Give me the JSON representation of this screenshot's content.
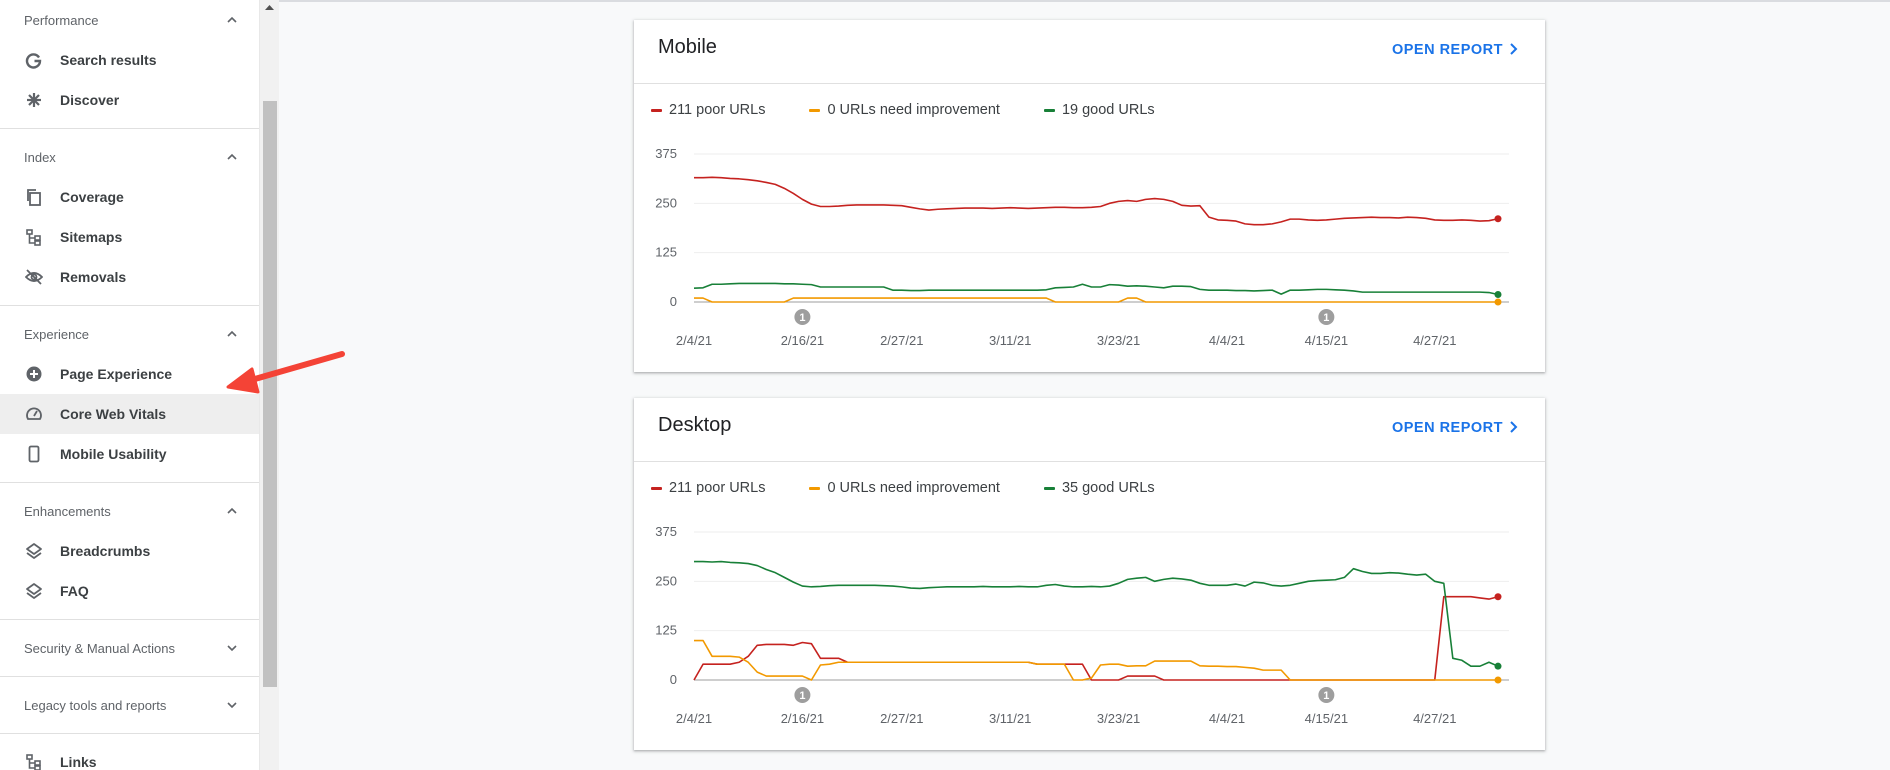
{
  "sidebar": {
    "sections": [
      {
        "title": "Performance",
        "expanded": true,
        "items": [
          {
            "label": "Search results",
            "icon": "g"
          },
          {
            "label": "Discover",
            "icon": "star"
          }
        ]
      },
      {
        "title": "Index",
        "expanded": true,
        "items": [
          {
            "label": "Coverage",
            "icon": "copy"
          },
          {
            "label": "Sitemaps",
            "icon": "tree"
          },
          {
            "label": "Removals",
            "icon": "eye"
          }
        ]
      },
      {
        "title": "Experience",
        "expanded": true,
        "items": [
          {
            "label": "Page Experience",
            "icon": "plus"
          },
          {
            "label": "Core Web Vitals",
            "icon": "gauge",
            "selected": true
          },
          {
            "label": "Mobile Usability",
            "icon": "phone"
          }
        ]
      },
      {
        "title": "Enhancements",
        "expanded": true,
        "items": [
          {
            "label": "Breadcrumbs",
            "icon": "layers"
          },
          {
            "label": "FAQ",
            "icon": "layers"
          }
        ]
      },
      {
        "title": "Security & Manual Actions",
        "expanded": false,
        "items": []
      },
      {
        "title": "Legacy tools and reports",
        "expanded": false,
        "items": []
      }
    ],
    "footer_items": [
      {
        "label": "Links",
        "icon": "tree"
      }
    ]
  },
  "chart_data": [
    {
      "type": "line",
      "title": "Mobile",
      "link": "OPEN REPORT",
      "categories": [
        "2/4/21",
        null,
        null,
        null,
        null,
        null,
        null,
        null,
        null,
        null,
        null,
        null,
        "2/16/21",
        null,
        null,
        null,
        null,
        null,
        null,
        null,
        null,
        null,
        null,
        "2/27/21",
        null,
        null,
        null,
        null,
        null,
        null,
        null,
        null,
        null,
        null,
        null,
        "3/11/21",
        null,
        null,
        null,
        null,
        null,
        null,
        null,
        null,
        null,
        null,
        null,
        "3/23/21",
        null,
        null,
        null,
        null,
        null,
        null,
        null,
        null,
        null,
        null,
        null,
        "4/4/21",
        null,
        null,
        null,
        null,
        null,
        null,
        null,
        null,
        null,
        null,
        "4/15/21",
        null,
        null,
        null,
        null,
        null,
        null,
        null,
        null,
        null,
        null,
        null,
        "4/27/21",
        null,
        null,
        null,
        null,
        null,
        null,
        null
      ],
      "ylim": [
        0,
        375
      ],
      "yticks": [
        0,
        125,
        250,
        375
      ],
      "grid": true,
      "annotations": [
        {
          "at": "2/16/21",
          "label": "1"
        },
        {
          "at": "4/15/21",
          "label": "1"
        }
      ],
      "series": [
        {
          "name": "211 poor URLs",
          "color": "#c5221f",
          "values": [
            315,
            315,
            316,
            315,
            313,
            312,
            310,
            307,
            303,
            298,
            288,
            275,
            260,
            248,
            242,
            242,
            243,
            245,
            246,
            246,
            246,
            246,
            245,
            244,
            240,
            236,
            233,
            235,
            236,
            237,
            238,
            238,
            238,
            237,
            238,
            239,
            238,
            237,
            238,
            239,
            240,
            240,
            239,
            239,
            240,
            242,
            250,
            255,
            257,
            255,
            260,
            262,
            260,
            255,
            245,
            243,
            244,
            215,
            208,
            207,
            205,
            198,
            196,
            196,
            198,
            203,
            210,
            210,
            208,
            207,
            208,
            210,
            212,
            213,
            214,
            215,
            214,
            214,
            213,
            215,
            214,
            212,
            208,
            207,
            207,
            208,
            207,
            205,
            206,
            211
          ]
        },
        {
          "name": "0 URLs need improvement",
          "color": "#f29900",
          "values": [
            10,
            10,
            0,
            0,
            0,
            0,
            0,
            0,
            0,
            0,
            0,
            10,
            10,
            10,
            10,
            10,
            10,
            10,
            10,
            10,
            10,
            10,
            10,
            10,
            10,
            10,
            10,
            10,
            10,
            10,
            10,
            10,
            10,
            10,
            10,
            10,
            10,
            10,
            10,
            10,
            0,
            0,
            0,
            0,
            0,
            0,
            0,
            0,
            10,
            10,
            0,
            0,
            0,
            0,
            0,
            0,
            0,
            0,
            0,
            0,
            0,
            0,
            0,
            0,
            0,
            0,
            0,
            0,
            0,
            0,
            0,
            0,
            0,
            0,
            0,
            0,
            0,
            0,
            0,
            0,
            0,
            0,
            0,
            0,
            0,
            0,
            0,
            0,
            0,
            0
          ]
        },
        {
          "name": "19 good URLs",
          "color": "#188038",
          "values": [
            35,
            36,
            45,
            45,
            46,
            47,
            47,
            47,
            47,
            47,
            46,
            46,
            45,
            44,
            38,
            38,
            38,
            38,
            38,
            38,
            38,
            38,
            30,
            30,
            29,
            29,
            30,
            30,
            30,
            30,
            30,
            30,
            30,
            30,
            30,
            30,
            30,
            30,
            30,
            31,
            36,
            37,
            38,
            45,
            38,
            38,
            44,
            43,
            40,
            41,
            40,
            38,
            36,
            40,
            40,
            39,
            32,
            30,
            30,
            30,
            29,
            29,
            28,
            29,
            30,
            20,
            30,
            30,
            31,
            32,
            32,
            31,
            30,
            28,
            25,
            25,
            25,
            25,
            25,
            25,
            25,
            25,
            25,
            25,
            25,
            25,
            25,
            25,
            24,
            19
          ]
        }
      ]
    },
    {
      "type": "line",
      "title": "Desktop",
      "link": "OPEN REPORT",
      "categories": [
        "2/4/21",
        null,
        null,
        null,
        null,
        null,
        null,
        null,
        null,
        null,
        null,
        null,
        "2/16/21",
        null,
        null,
        null,
        null,
        null,
        null,
        null,
        null,
        null,
        null,
        "2/27/21",
        null,
        null,
        null,
        null,
        null,
        null,
        null,
        null,
        null,
        null,
        null,
        "3/11/21",
        null,
        null,
        null,
        null,
        null,
        null,
        null,
        null,
        null,
        null,
        null,
        "3/23/21",
        null,
        null,
        null,
        null,
        null,
        null,
        null,
        null,
        null,
        null,
        null,
        "4/4/21",
        null,
        null,
        null,
        null,
        null,
        null,
        null,
        null,
        null,
        null,
        "4/15/21",
        null,
        null,
        null,
        null,
        null,
        null,
        null,
        null,
        null,
        null,
        null,
        "4/27/21",
        null,
        null,
        null,
        null,
        null,
        null,
        null
      ],
      "ylim": [
        0,
        375
      ],
      "yticks": [
        0,
        125,
        250,
        375
      ],
      "grid": true,
      "annotations": [
        {
          "at": "2/16/21",
          "label": "1"
        },
        {
          "at": "4/15/21",
          "label": "1"
        }
      ],
      "series": [
        {
          "name": "211 poor URLs",
          "color": "#c5221f",
          "values": [
            0,
            40,
            40,
            40,
            40,
            45,
            60,
            88,
            90,
            90,
            90,
            88,
            95,
            92,
            55,
            55,
            55,
            45,
            45,
            45,
            45,
            45,
            45,
            45,
            45,
            45,
            45,
            45,
            45,
            45,
            45,
            45,
            45,
            45,
            45,
            45,
            45,
            45,
            40,
            40,
            40,
            40,
            40,
            40,
            0,
            0,
            0,
            0,
            10,
            10,
            10,
            10,
            0,
            0,
            0,
            0,
            0,
            0,
            0,
            0,
            0,
            0,
            0,
            0,
            0,
            0,
            0,
            0,
            0,
            0,
            0,
            0,
            0,
            0,
            0,
            0,
            0,
            0,
            0,
            0,
            0,
            0,
            0,
            211,
            211,
            211,
            211,
            208,
            205,
            211
          ]
        },
        {
          "name": "0 URLs need improvement",
          "color": "#f29900",
          "values": [
            100,
            100,
            60,
            60,
            60,
            58,
            45,
            20,
            10,
            10,
            10,
            10,
            10,
            0,
            38,
            40,
            45,
            45,
            45,
            45,
            45,
            45,
            45,
            45,
            45,
            45,
            45,
            45,
            45,
            45,
            45,
            45,
            45,
            45,
            45,
            45,
            45,
            45,
            40,
            40,
            40,
            40,
            0,
            0,
            5,
            38,
            40,
            40,
            35,
            36,
            36,
            48,
            48,
            48,
            48,
            48,
            36,
            35,
            35,
            34,
            34,
            32,
            30,
            25,
            25,
            25,
            0,
            0,
            0,
            0,
            0,
            0,
            0,
            0,
            0,
            0,
            0,
            0,
            0,
            0,
            0,
            0,
            0,
            0,
            0,
            0,
            0,
            0,
            0,
            0
          ]
        },
        {
          "name": "35 good URLs",
          "color": "#188038",
          "values": [
            300,
            300,
            299,
            300,
            298,
            297,
            295,
            290,
            280,
            272,
            260,
            248,
            238,
            236,
            237,
            239,
            240,
            240,
            240,
            240,
            240,
            239,
            238,
            236,
            233,
            232,
            234,
            235,
            236,
            236,
            236,
            236,
            237,
            236,
            236,
            236,
            237,
            236,
            236,
            240,
            242,
            238,
            236,
            236,
            237,
            236,
            238,
            245,
            255,
            258,
            260,
            250,
            255,
            258,
            256,
            253,
            245,
            240,
            240,
            240,
            243,
            238,
            248,
            246,
            240,
            238,
            240,
            245,
            250,
            252,
            253,
            254,
            260,
            282,
            275,
            270,
            270,
            272,
            271,
            268,
            266,
            268,
            250,
            245,
            55,
            50,
            35,
            35,
            45,
            35
          ]
        }
      ]
    }
  ]
}
